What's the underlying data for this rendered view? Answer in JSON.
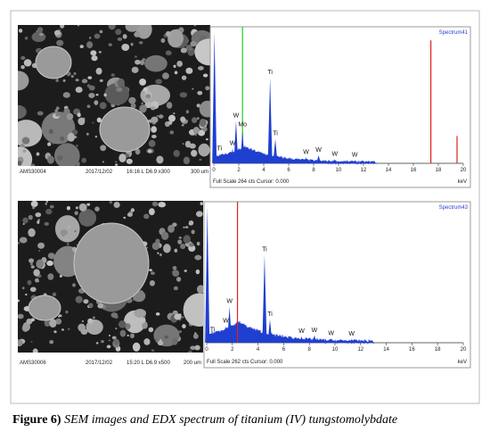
{
  "panels": [
    {
      "sem": {
        "id": "AMS30004",
        "date": "2017/12/02",
        "info": "16:16  L   D6.9  x300",
        "scale": "300 um"
      },
      "spectrum": {
        "type": "spectrum",
        "name": "Spectrum41",
        "footer": "Full Scale 264 cts Cursor: 0.000",
        "x_unit": "keV",
        "xlim": [
          0,
          20
        ],
        "xticks": [
          0,
          2,
          4,
          6,
          8,
          10,
          12,
          14,
          16,
          18,
          20
        ],
        "ylim": [
          0,
          264
        ],
        "peaks": [
          {
            "label": null,
            "x": 0.05,
            "counts": 264
          },
          {
            "label": "Ti",
            "x": 0.45,
            "counts": 19
          },
          {
            "label": "W",
            "x": 1.5,
            "counts": 30
          },
          {
            "label": "W",
            "x": 1.78,
            "counts": 85
          },
          {
            "label": "Mo",
            "x": 2.3,
            "counts": 67
          },
          {
            "label": "Ti",
            "x": 4.51,
            "counts": 172
          },
          {
            "label": "Ti",
            "x": 4.93,
            "counts": 49
          },
          {
            "label": "W",
            "x": 7.4,
            "counts": 12
          },
          {
            "label": "W",
            "x": 8.4,
            "counts": 16
          },
          {
            "label": "W",
            "x": 9.7,
            "counts": 8
          },
          {
            "label": "W",
            "x": 11.3,
            "counts": 6
          }
        ]
      }
    },
    {
      "sem": {
        "id": "AMS30006",
        "date": "2017/12/02",
        "info": "15:20  L   D6.9  x500",
        "scale": "200 um"
      },
      "spectrum": {
        "type": "spectrum",
        "name": "Spectrum43",
        "footer": "Full Scale 262 cts Cursor: 0.000",
        "x_unit": "keV",
        "xlim": [
          0,
          20
        ],
        "xticks": [
          0,
          2,
          4,
          6,
          8,
          10,
          12,
          14,
          16,
          18,
          20
        ],
        "ylim": [
          0,
          262
        ],
        "peaks": [
          {
            "label": null,
            "x": 0.05,
            "counts": 262
          },
          {
            "label": "Ti",
            "x": 0.45,
            "counts": 15
          },
          {
            "label": "W",
            "x": 1.5,
            "counts": 32
          },
          {
            "label": "W",
            "x": 1.78,
            "counts": 70
          },
          {
            "label": "Ti",
            "x": 4.51,
            "counts": 170
          },
          {
            "label": "Ti",
            "x": 4.93,
            "counts": 45
          },
          {
            "label": "W",
            "x": 7.4,
            "counts": 12
          },
          {
            "label": "W",
            "x": 8.4,
            "counts": 14
          },
          {
            "label": "W",
            "x": 9.7,
            "counts": 8
          },
          {
            "label": "W",
            "x": 11.3,
            "counts": 7
          }
        ]
      }
    }
  ],
  "caption": {
    "label": "Figure 6)",
    "text": "SEM images and EDX spectrum of titanium (IV) tungstomolybdate"
  }
}
